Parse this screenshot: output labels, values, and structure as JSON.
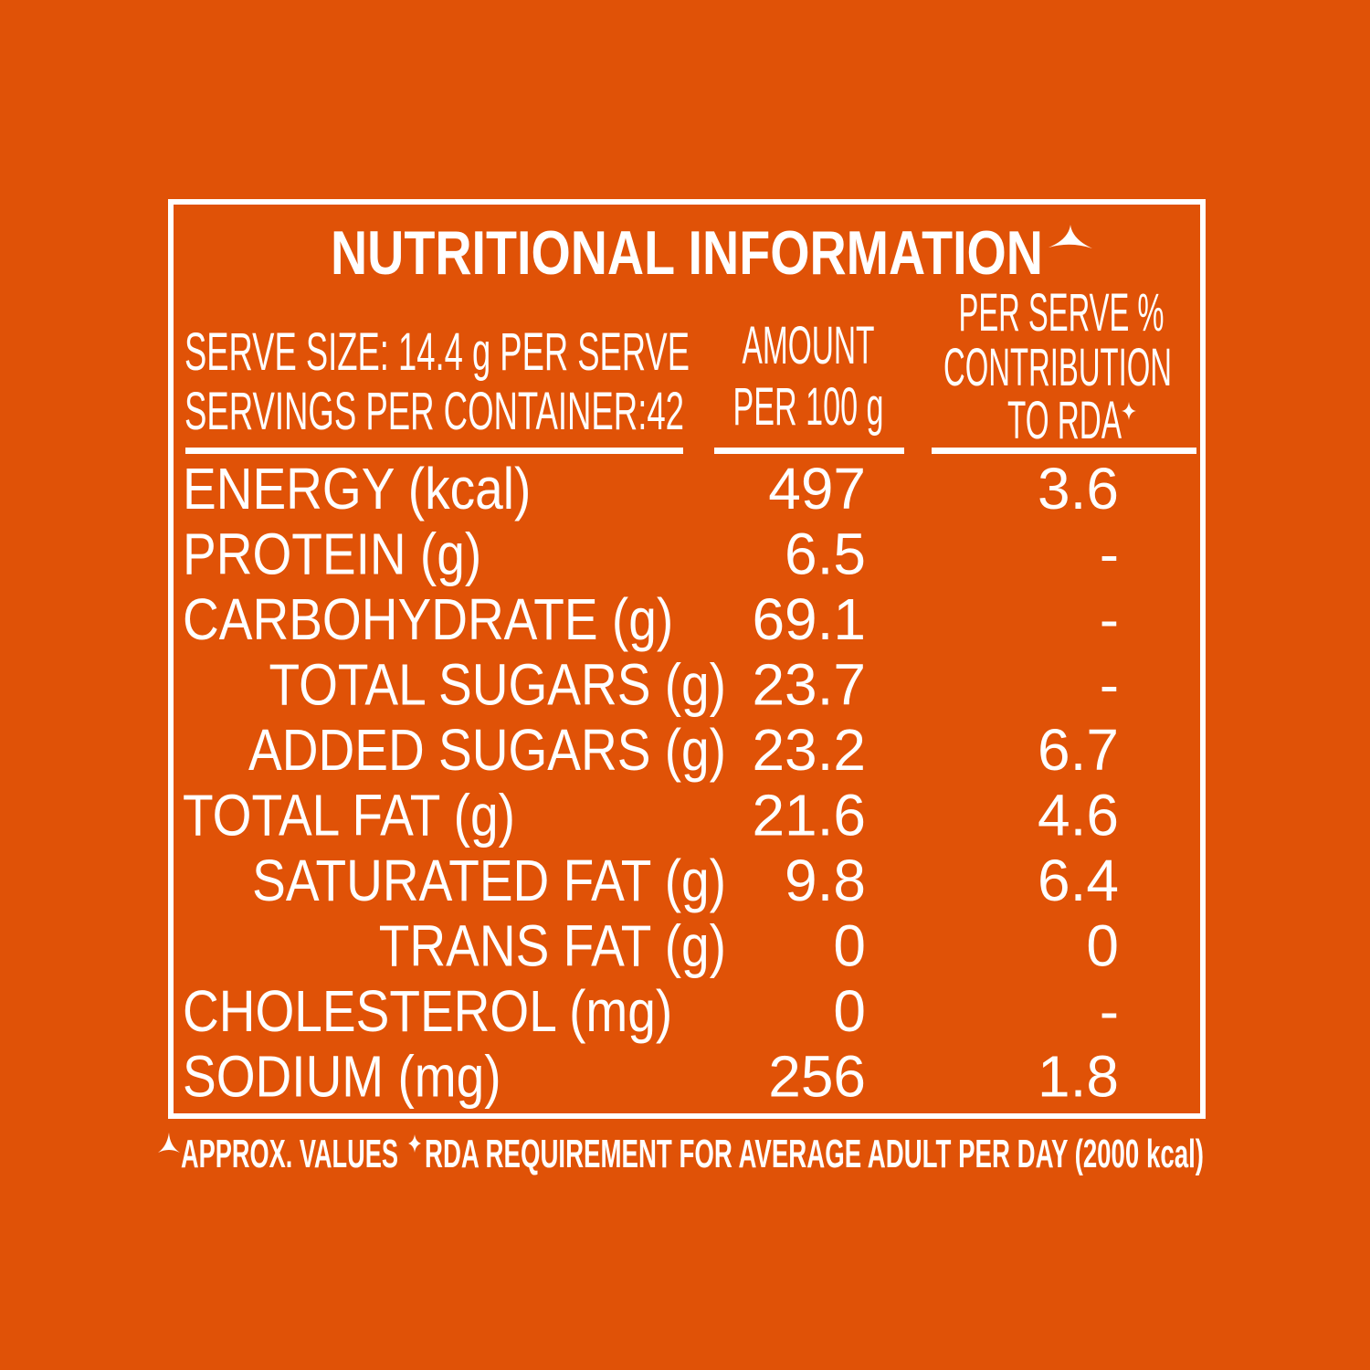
{
  "title": "NUTRITIONAL INFORMATION",
  "header": {
    "serve": [
      "SERVE SIZE: 14.4 g PER SERVE",
      "SERVINGS PER CONTAINER:42"
    ],
    "amount": [
      "AMOUNT",
      "PER 100 g"
    ],
    "rda": [
      "PER SERVE %",
      "CONTRIBUTION",
      "TO RDA"
    ]
  },
  "rows": [
    [
      "ENERGY (kcal)",
      "497",
      "3.6"
    ],
    [
      "PROTEIN (g)",
      "6.5",
      "-"
    ],
    [
      "CARBOHYDRATE (g)",
      "69.1",
      "-"
    ],
    [
      "TOTAL SUGARS (g)",
      "23.7",
      "-"
    ],
    [
      "ADDED SUGARS (g)",
      "23.2",
      "6.7"
    ],
    [
      "TOTAL FAT (g)",
      "21.6",
      "4.6"
    ],
    [
      "SATURATED FAT (g)",
      "9.8",
      "6.4"
    ],
    [
      "TRANS FAT (g)",
      "0",
      "0"
    ],
    [
      "CHOLESTEROL (mg)",
      "0",
      "-"
    ],
    [
      "SODIUM (mg)",
      "256",
      "1.8"
    ]
  ],
  "footnote": [
    "APPROX. VALUES",
    "RDA REQUIREMENT FOR AVERAGE ADULT PER DAY (2000 kcal)"
  ]
}
